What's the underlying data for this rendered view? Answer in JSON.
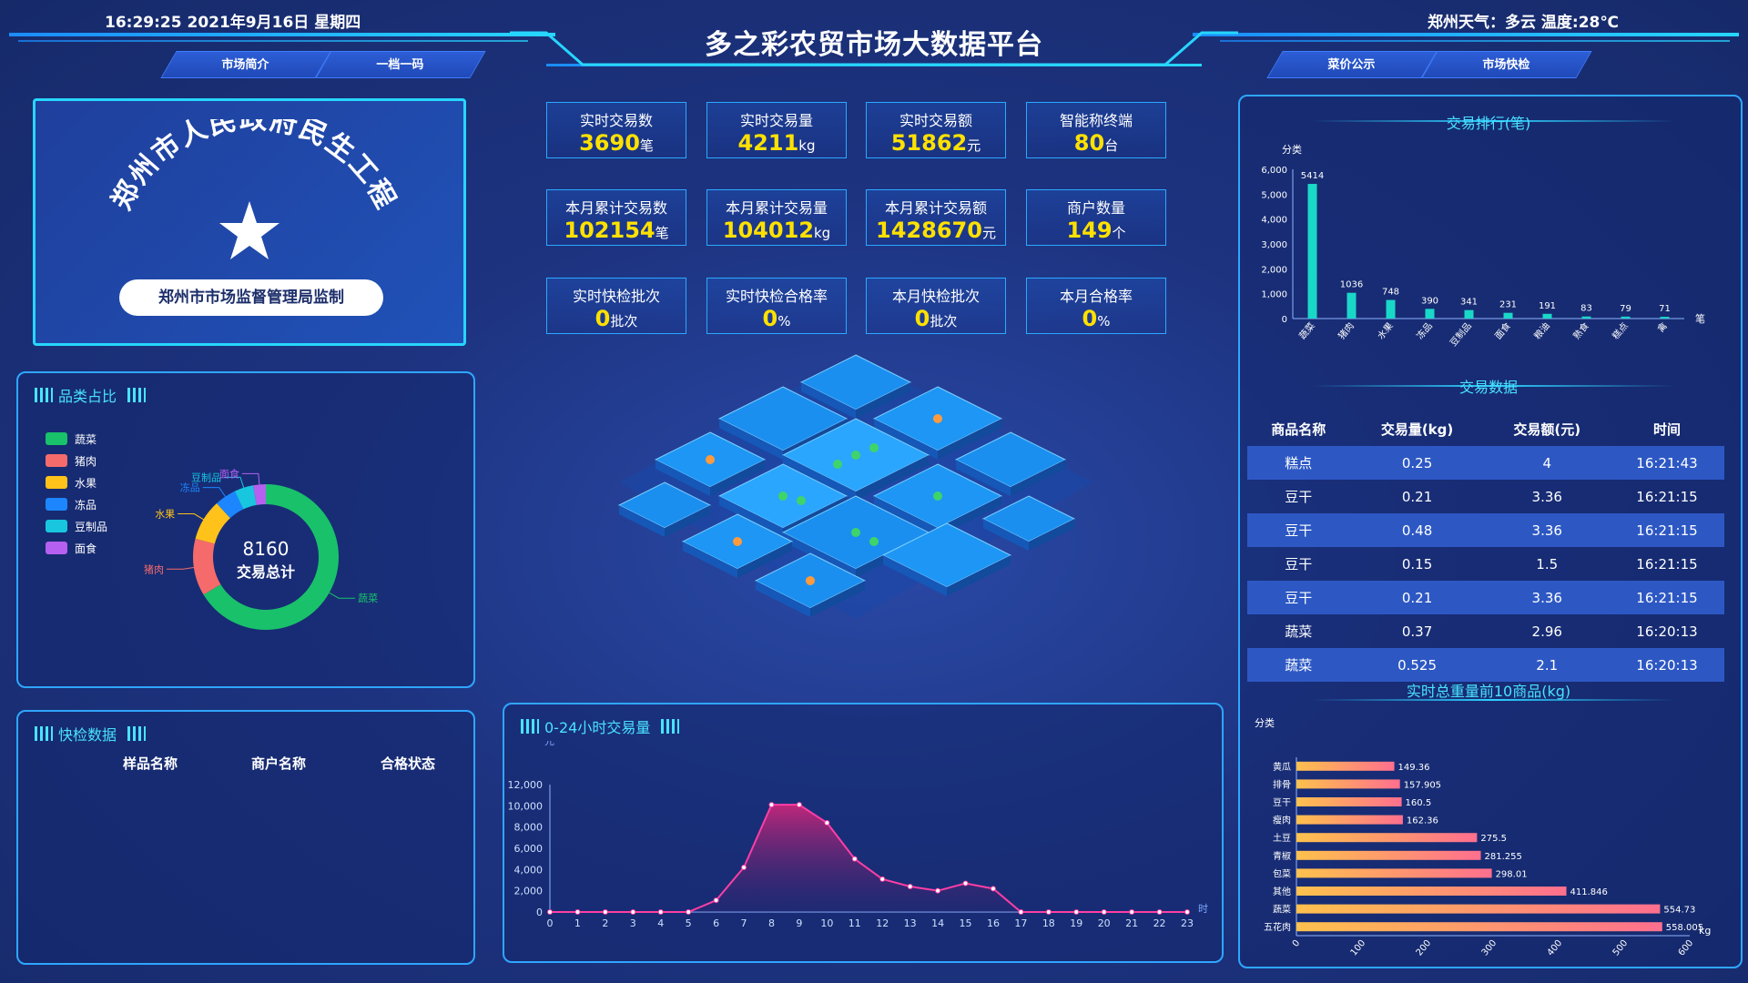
{
  "header": {
    "datetime": "16:29:25 2021年9月16日 星期四",
    "title": "多之彩农贸市场大数据平台",
    "weather": "郑州天气：多云 温度:28℃",
    "nav_left": [
      "市场简介",
      "一档一码"
    ],
    "nav_right": [
      "菜价公示",
      "市场快检"
    ]
  },
  "emblem": {
    "arc_text": "郑州市人民政府民生工程",
    "supervision": "郑州市市场监督管理局监制"
  },
  "stats": [
    {
      "label": "实时交易数",
      "value": "3690",
      "unit": "笔"
    },
    {
      "label": "实时交易量",
      "value": "4211",
      "unit": "kg"
    },
    {
      "label": "实时交易额",
      "value": "51862",
      "unit": "元"
    },
    {
      "label": "智能称终端",
      "value": "80",
      "unit": "台"
    },
    {
      "label": "本月累计交易数",
      "value": "102154",
      "unit": "笔"
    },
    {
      "label": "本月累计交易量",
      "value": "104012",
      "unit": "kg"
    },
    {
      "label": "本月累计交易额",
      "value": "1428670",
      "unit": "元"
    },
    {
      "label": "商户数量",
      "value": "149",
      "unit": "个"
    },
    {
      "label": "实时快检批次",
      "value": "0",
      "unit": "批次"
    },
    {
      "label": "实时快检合格率",
      "value": "0",
      "unit": "%"
    },
    {
      "label": "本月快检批次",
      "value": "0",
      "unit": "批次"
    },
    {
      "label": "本月合格率",
      "value": "0",
      "unit": "%"
    }
  ],
  "category_panel": {
    "title": "品类占比",
    "total_value": "8160",
    "total_label": "交易总计"
  },
  "inspection_panel": {
    "title": "快检数据",
    "columns": [
      "样品名称",
      "商户名称",
      "合格状态"
    ]
  },
  "hourly_panel": {
    "title": "0-24小时交易量"
  },
  "ranking_section": {
    "title": "交易排行(笔)"
  },
  "transactions_section": {
    "title": "交易数据",
    "columns": [
      "商品名称",
      "交易量(kg)",
      "交易额(元)",
      "时间"
    ],
    "rows": [
      [
        "糕点",
        "0.25",
        "4",
        "16:21:43"
      ],
      [
        "豆干",
        "0.21",
        "3.36",
        "16:21:15"
      ],
      [
        "豆干",
        "0.48",
        "3.36",
        "16:21:15"
      ],
      [
        "豆干",
        "0.15",
        "1.5",
        "16:21:15"
      ],
      [
        "豆干",
        "0.21",
        "3.36",
        "16:21:15"
      ],
      [
        "蔬菜",
        "0.37",
        "2.96",
        "16:20:13"
      ],
      [
        "蔬菜",
        "0.525",
        "2.1",
        "16:20:13"
      ]
    ]
  },
  "top10_section": {
    "title": "实时总重量前10商品(kg)"
  },
  "colors": {
    "accent": "#49e3ff",
    "highlight": "#ffe100",
    "panel_border": "#2fa6ff"
  },
  "chart_data": [
    {
      "type": "pie",
      "categories": [
        "蔬菜",
        "猪肉",
        "水果",
        "冻品",
        "豆制品",
        "面食"
      ],
      "values": [
        5414,
        1036,
        748,
        390,
        341,
        231
      ],
      "colors": [
        "#19c16a",
        "#f56b6b",
        "#ffc21a",
        "#1d86ff",
        "#18c6e0",
        "#b560f0"
      ],
      "legend_position": "left"
    },
    {
      "type": "bar",
      "categories": [
        "蔬菜",
        "猪肉",
        "水果",
        "冻品",
        "豆制品",
        "面食",
        "粮油",
        "熟食",
        "糕点",
        "禽"
      ],
      "values": [
        5414,
        1036,
        748,
        390,
        341,
        231,
        191,
        83,
        79,
        71
      ],
      "ylabel": "分类",
      "xlabel": "笔",
      "ylim": [
        0,
        6000
      ],
      "yticks": [
        "0",
        "1,000",
        "2,000",
        "3,000",
        "4,000",
        "5,000",
        "6,000"
      ]
    },
    {
      "type": "area",
      "x": [
        0,
        1,
        2,
        3,
        4,
        5,
        6,
        7,
        8,
        9,
        10,
        11,
        12,
        13,
        14,
        15,
        16,
        17,
        18,
        19,
        20,
        21,
        22,
        23
      ],
      "values": [
        0,
        0,
        0,
        0,
        0,
        0,
        1100,
        4200,
        10100,
        10100,
        8400,
        5000,
        3100,
        2400,
        2000,
        2700,
        2200,
        0,
        0,
        0,
        0,
        0,
        0,
        0
      ],
      "ylabel": "元",
      "xlabel": "时",
      "ylim": [
        0,
        12000
      ],
      "yticks": [
        "0",
        "2,000",
        "4,000",
        "6,000",
        "8,000",
        "10,000",
        "12,000"
      ]
    },
    {
      "type": "bar",
      "orientation": "horizontal",
      "categories": [
        "黄瓜",
        "排骨",
        "豆干",
        "瘦肉",
        "土豆",
        "青椒",
        "包菜",
        "其他",
        "蔬菜",
        "五花肉"
      ],
      "values": [
        149.36,
        157.905,
        160.5,
        162.36,
        275.5,
        281.255,
        298.01,
        411.846,
        554.73,
        558.005
      ],
      "ylabel": "分类",
      "xlabel": "kg",
      "xlim": [
        0,
        600
      ],
      "xticks": [
        "0",
        "100",
        "200",
        "300",
        "400",
        "500",
        "600"
      ]
    }
  ]
}
